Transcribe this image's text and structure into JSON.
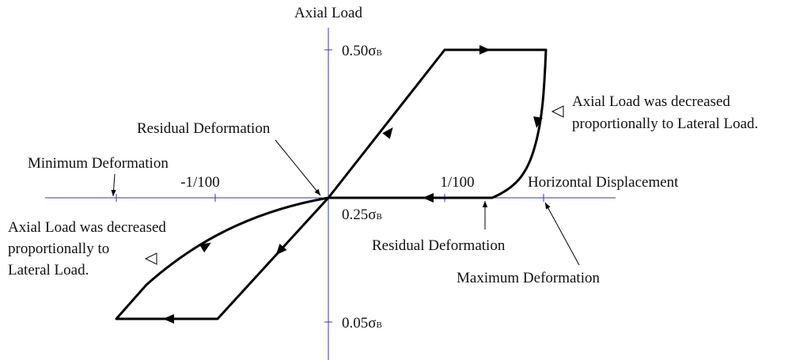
{
  "vertical_axis": {
    "title": "Axial Load",
    "ticks": [
      {
        "text": "0.50σ",
        "subscript": "B"
      },
      {
        "text": "0.25σ",
        "subscript": "B"
      },
      {
        "text": "0.05σ",
        "subscript": "B"
      }
    ]
  },
  "horizontal_axis": {
    "title": "Horizontal Displacement",
    "ticks": [
      "-1/100",
      "1/100"
    ]
  },
  "annotations": {
    "residual_upper": "Residual Deformation",
    "residual_lower": "Residual Deformation",
    "minimum": "Minimum Deformation",
    "maximum": "Maximum Deformation",
    "decrease_right": [
      "Axial Load was decreased",
      "proportionally to Lateral Load."
    ],
    "decrease_left": [
      "Axial Load was decreased",
      "proportionally to",
      "Lateral Load."
    ]
  }
}
